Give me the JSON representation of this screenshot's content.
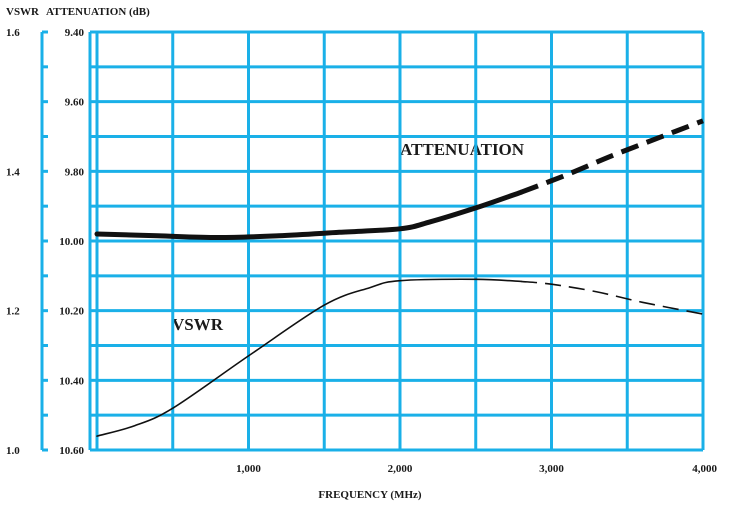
{
  "chart_data": {
    "type": "line",
    "title": "",
    "xlabel": "FREQUENCY (MHz)",
    "ylabel_left": "VSWR",
    "ylabel_right": "ATTENUATION (dB)",
    "xlim": [
      0,
      4000
    ],
    "x_ticks": [
      {
        "value": 1000,
        "label": "1,000"
      },
      {
        "value": 2000,
        "label": "2,000"
      },
      {
        "value": 3000,
        "label": "3,000"
      },
      {
        "value": 4000,
        "label": "4,000"
      }
    ],
    "vswr_axis": {
      "range": [
        1.0,
        1.6
      ],
      "ticks": [
        {
          "value": 1.6,
          "label": "1.6"
        },
        {
          "value": 1.4,
          "label": "1.4"
        },
        {
          "value": 1.2,
          "label": "1.2"
        },
        {
          "value": 1.0,
          "label": "1.0"
        }
      ]
    },
    "attenuation_axis": {
      "range": [
        9.4,
        10.6
      ],
      "inverted": true,
      "ticks": [
        {
          "value": 9.4,
          "label": "9.40"
        },
        {
          "value": 9.6,
          "label": "9.60"
        },
        {
          "value": 9.8,
          "label": "9.80"
        },
        {
          "value": 10.0,
          "label": "10.00"
        },
        {
          "value": 10.2,
          "label": "10.20"
        },
        {
          "value": 10.4,
          "label": "10.40"
        },
        {
          "value": 10.6,
          "label": "10.60"
        }
      ]
    },
    "grid": true,
    "grid_color": "#1ab0e8",
    "curve_color": "#111111",
    "series": [
      {
        "name": "ATTENUATION",
        "axis": "attenuation",
        "solid": [
          [
            0,
            9.98
          ],
          [
            400,
            9.985
          ],
          [
            800,
            9.99
          ],
          [
            1200,
            9.985
          ],
          [
            1600,
            9.975
          ],
          [
            2000,
            9.965
          ],
          [
            2200,
            9.945
          ],
          [
            2500,
            9.905
          ],
          [
            2800,
            9.86
          ]
        ],
        "dashed": [
          [
            2800,
            9.86
          ],
          [
            3100,
            9.81
          ],
          [
            3400,
            9.755
          ],
          [
            3700,
            9.705
          ],
          [
            4000,
            9.655
          ]
        ]
      },
      {
        "name": "VSWR",
        "axis": "vswr",
        "solid": [
          [
            0,
            1.02
          ],
          [
            250,
            1.035
          ],
          [
            500,
            1.06
          ],
          [
            1000,
            1.135
          ],
          [
            1500,
            1.208
          ],
          [
            1800,
            1.233
          ],
          [
            2000,
            1.243
          ],
          [
            2500,
            1.245
          ],
          [
            2800,
            1.242
          ]
        ],
        "dashed": [
          [
            2800,
            1.242
          ],
          [
            3000,
            1.238
          ],
          [
            3300,
            1.227
          ],
          [
            3600,
            1.212
          ],
          [
            4000,
            1.195
          ]
        ]
      }
    ]
  }
}
